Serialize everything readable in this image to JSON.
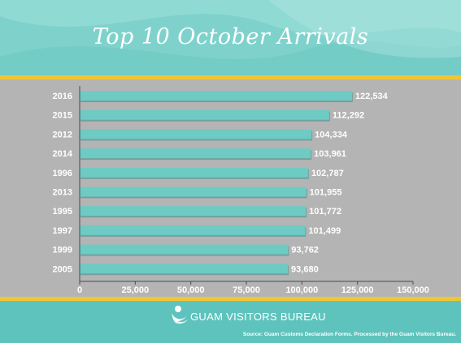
{
  "title": "Top 10 October Arrivals",
  "logo_text": "GUAM VISITORS BUREAU",
  "source": "Source: Guam Customs Declaration Forms. Processed by the Guam Visitors Bureau.",
  "colors": {
    "bar": "#6dcbc4",
    "bar_shadow": "#3e8f8a",
    "plot_bg": "#b5b4b4",
    "accent_stripe": "#f3c533",
    "header_bg": "#7fd2cc",
    "footer_bg": "#5ec3bd"
  },
  "chart_data": {
    "type": "bar",
    "orientation": "horizontal",
    "title": "Top 10 October Arrivals",
    "categories": [
      "2016",
      "2015",
      "2012",
      "2014",
      "1996",
      "2013",
      "1995",
      "1997",
      "1999",
      "2005"
    ],
    "values": [
      122534,
      112292,
      104334,
      103961,
      102787,
      101955,
      101772,
      101499,
      93762,
      93680
    ],
    "value_labels": [
      "122,534",
      "112,292",
      "104,334",
      "103,961",
      "102,787",
      "101,955",
      "101,772",
      "101,499",
      "93,762",
      "93,680"
    ],
    "xlim": [
      0,
      150000
    ],
    "xticks": [
      0,
      25000,
      50000,
      75000,
      100000,
      125000,
      150000
    ],
    "xtick_labels": [
      "0",
      "25,000",
      "50,000",
      "75,000",
      "100,000",
      "125,000",
      "150,000"
    ],
    "grid": false,
    "legend": "none"
  }
}
